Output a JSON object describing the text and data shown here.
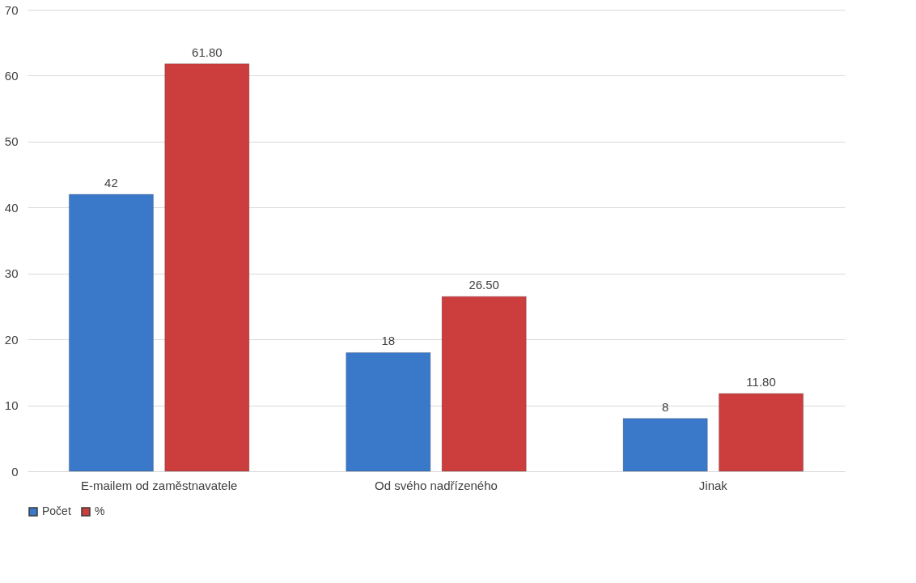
{
  "chart_data": {
    "type": "bar",
    "categories": [
      "E-mailem od zaměstnavatele",
      "Od svého nadřízeného",
      "Jinak"
    ],
    "series": [
      {
        "name": "Počet",
        "color": "#3a78c9",
        "values": [
          42,
          18,
          8
        ],
        "value_labels": [
          "42",
          "18",
          "8"
        ]
      },
      {
        "name": "%",
        "color": "#cc3d3d",
        "values": [
          61.8,
          26.5,
          11.8
        ],
        "value_labels": [
          "61.80",
          "26.50",
          "11.80"
        ]
      }
    ],
    "ylim": [
      0,
      70
    ],
    "yticks": [
      0,
      10,
      20,
      30,
      40,
      50,
      60,
      70
    ],
    "grid": "y",
    "legend": "bottom"
  }
}
